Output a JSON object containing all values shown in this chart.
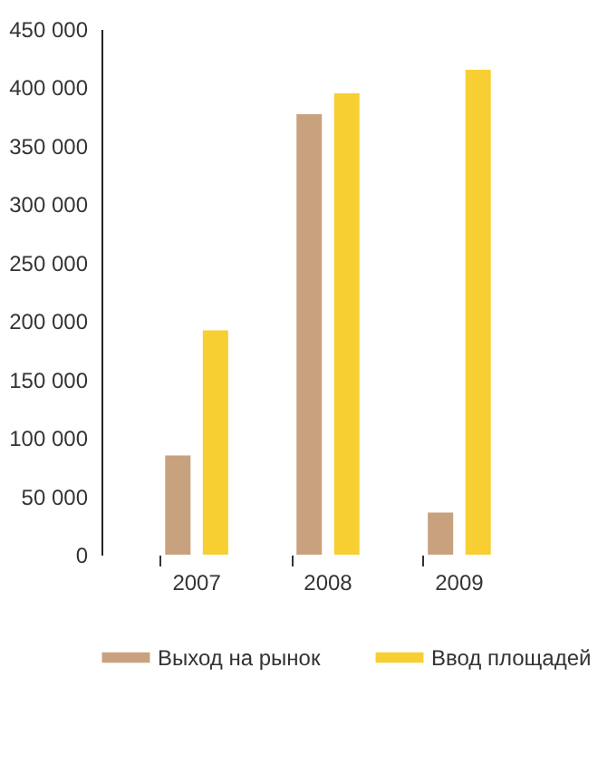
{
  "chart_data": {
    "type": "bar",
    "categories": [
      "2007",
      "2008",
      "2009"
    ],
    "series": [
      {
        "name": "Выход на рынок",
        "color": "#c8a27e",
        "values": [
          85000,
          377000,
          36000
        ]
      },
      {
        "name": "Ввод площадей",
        "color": "#f7cf33",
        "values": [
          192000,
          395000,
          415000
        ]
      }
    ],
    "ylim": [
      0,
      450000
    ],
    "yticks": [
      0,
      50000,
      100000,
      150000,
      200000,
      250000,
      300000,
      350000,
      400000,
      450000
    ],
    "grid": false,
    "legend": "bottom"
  }
}
